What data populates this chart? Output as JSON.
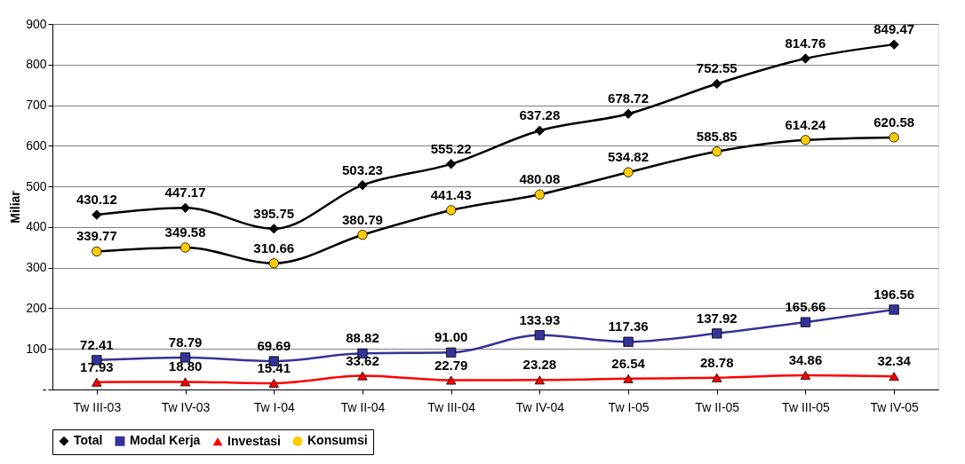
{
  "chart_data": {
    "type": "line",
    "ylabel": "Miliar",
    "categories": [
      "Tw III-03",
      "Tw IV-03",
      "Tw I-04",
      "Tw II-04",
      "Tw III-04",
      "Tw IV-04",
      "Tw I-05",
      "Tw II-05",
      "Tw III-05",
      "Tw IV-05"
    ],
    "series": [
      {
        "name": "Total",
        "color": "#000000",
        "marker": "diamond",
        "values": [
          430.12,
          447.17,
          395.75,
          503.23,
          555.22,
          637.28,
          678.72,
          752.55,
          814.76,
          849.47
        ],
        "value_labels": [
          "430.12",
          "447.17",
          "395.75",
          "503.23",
          "555.22",
          "637.28",
          "678.72",
          "752.55",
          "814.76",
          "849.47"
        ]
      },
      {
        "name": "Modal Kerja",
        "color": "#333399",
        "marker": "square",
        "values": [
          72.41,
          78.79,
          69.69,
          88.82,
          91.0,
          133.93,
          117.36,
          137.92,
          165.66,
          196.56
        ],
        "value_labels": [
          "72.41",
          "78.79",
          "69.69",
          "88.82",
          "91.00",
          "133.93",
          "117.36",
          "137.92",
          "165.66",
          "196.56"
        ]
      },
      {
        "name": "Investasi",
        "color": "#ff0000",
        "marker": "triangle",
        "values": [
          17.93,
          18.8,
          15.41,
          33.62,
          22.79,
          23.28,
          26.54,
          28.78,
          34.86,
          32.34
        ],
        "value_labels": [
          "17.93",
          "18.80",
          "15.41",
          "33.62",
          "22.79",
          "23.28",
          "26.54",
          "28.78",
          "34.86",
          "32.34"
        ]
      },
      {
        "name": "Konsumsi",
        "color": "#000000",
        "colors": [
          "#ffcc00",
          "#ffcc00",
          "#ffcc00",
          "#ffcc00",
          "#ffcc00",
          "#ffcc00",
          "#ffcc00",
          "#ffcc00",
          "#ffcc00",
          "#ffcc00"
        ],
        "marker": "circle",
        "values": [
          339.77,
          349.58,
          310.66,
          380.79,
          441.43,
          480.08,
          534.82,
          585.85,
          614.24,
          620.58
        ],
        "value_labels": [
          "339.77",
          "349.58",
          "310.66",
          "380.79",
          "441.43",
          "480.08",
          "534.82",
          "585.85",
          "614.24",
          "620.58"
        ]
      }
    ],
    "ylim": [
      0,
      900
    ],
    "yticks": [
      {
        "value": 0,
        "label": "-"
      },
      100,
      200,
      300,
      400,
      500,
      600,
      700,
      800,
      900
    ],
    "grid": "y",
    "legend": "bottom",
    "line_style": "solid"
  }
}
